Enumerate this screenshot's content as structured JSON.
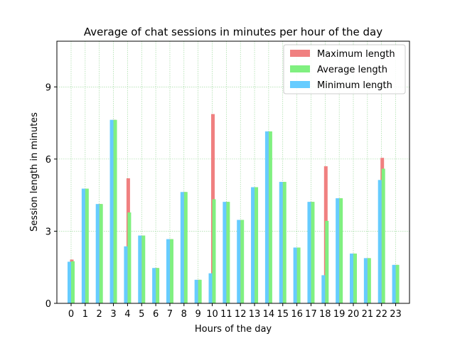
{
  "chart_data": {
    "type": "bar",
    "title": "Average of chat sessions in minutes per hour of the day",
    "xlabel": "Hours of the day",
    "ylabel": "Session length in minutes",
    "ylim": [
      0,
      10.9
    ],
    "yticks": [
      0,
      3,
      6,
      9
    ],
    "grid": true,
    "legend_position": "top-right",
    "categories": [
      "0",
      "1",
      "2",
      "3",
      "4",
      "5",
      "6",
      "7",
      "8",
      "9",
      "10",
      "11",
      "12",
      "13",
      "14",
      "15",
      "16",
      "17",
      "18",
      "19",
      "20",
      "21",
      "22",
      "23"
    ],
    "series": [
      {
        "name": "Maximum length",
        "color": "#f08080",
        "values": [
          1.82,
          4.77,
          4.13,
          7.63,
          5.2,
          2.82,
          1.47,
          2.67,
          4.63,
          0.98,
          7.87,
          4.22,
          3.47,
          4.83,
          7.15,
          5.05,
          2.32,
          4.22,
          5.7,
          4.37,
          2.07,
          1.88,
          6.05,
          1.6
        ]
      },
      {
        "name": "Average length",
        "color": "#80f080",
        "values": [
          1.75,
          4.77,
          4.13,
          7.63,
          3.78,
          2.82,
          1.47,
          2.67,
          4.63,
          0.98,
          4.33,
          4.22,
          3.47,
          4.83,
          7.15,
          5.05,
          2.32,
          4.22,
          3.43,
          4.37,
          2.07,
          1.88,
          5.6,
          1.6
        ]
      },
      {
        "name": "Minimum length",
        "color": "#66ccff",
        "values": [
          1.73,
          4.77,
          4.13,
          7.63,
          2.37,
          2.82,
          1.47,
          2.67,
          4.63,
          0.98,
          1.25,
          4.22,
          3.47,
          4.83,
          7.15,
          5.05,
          2.32,
          4.22,
          1.17,
          4.37,
          2.07,
          1.88,
          5.13,
          1.6
        ]
      }
    ]
  }
}
